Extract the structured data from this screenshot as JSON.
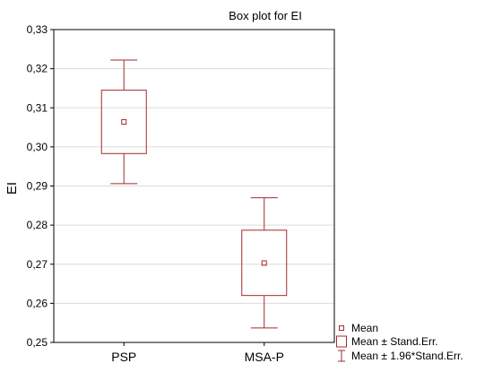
{
  "chart_data": {
    "type": "box",
    "title": "Box plot for EI",
    "xlabel": "",
    "ylabel": "EI",
    "ylim": [
      0.25,
      0.33
    ],
    "yticks": [
      0.25,
      0.26,
      0.27,
      0.28,
      0.29,
      0.3,
      0.31,
      0.32,
      0.33
    ],
    "ytick_labels": [
      "0,25",
      "0,26",
      "0,27",
      "0,28",
      "0,29",
      "0,30",
      "0,31",
      "0,32",
      "0,33"
    ],
    "categories": [
      "PSP",
      "MSA-P"
    ],
    "mean": [
      0.3064,
      0.2703
    ],
    "se_low": [
      0.2983,
      0.262
    ],
    "se_high": [
      0.3145,
      0.2787
    ],
    "ci_low": [
      0.2906,
      0.2537
    ],
    "ci_high": [
      0.3222,
      0.287
    ],
    "grid": true,
    "legend_position": "bottom-right",
    "legend": [
      "Mean",
      "Mean ± Stand.Err.",
      "Mean ± 1.96*Stand.Err."
    ],
    "color": "#a52a2a"
  }
}
